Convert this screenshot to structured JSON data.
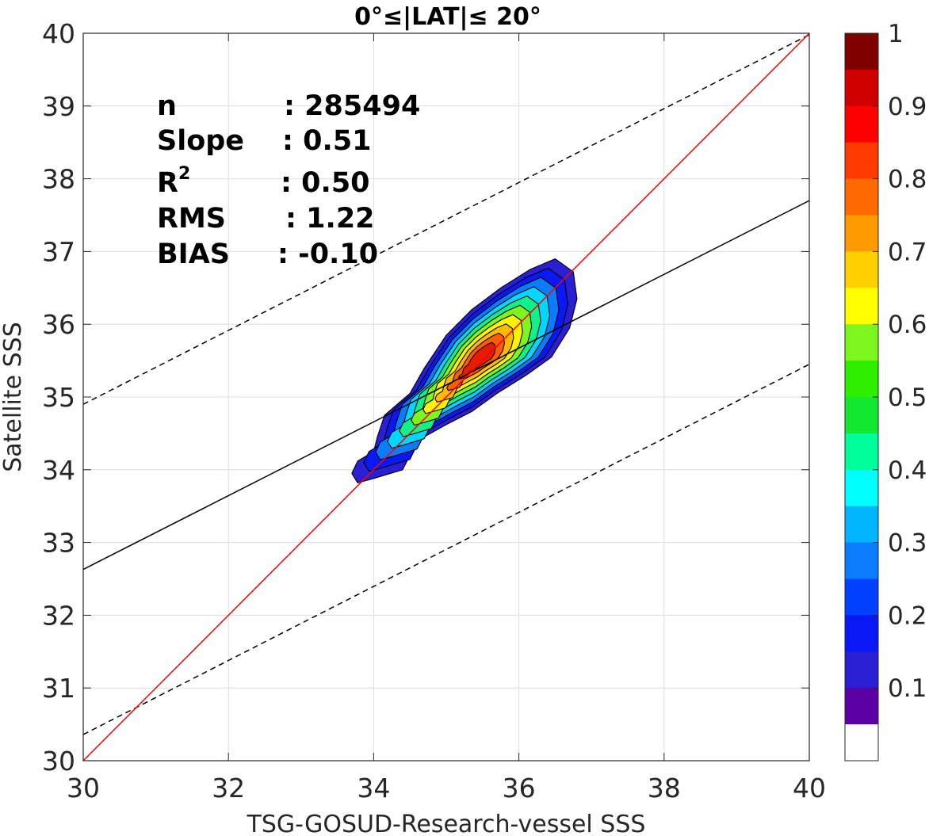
{
  "chart_data": {
    "type": "contour",
    "title": "0°≤|LAT|≤ 20°",
    "xlabel": "TSG-GOSUD-Research-vessel SSS",
    "ylabel": "Satellite SSS",
    "xlim": [
      30,
      40
    ],
    "ylim": [
      30,
      40
    ],
    "xticks": [
      "30",
      "32",
      "34",
      "36",
      "38",
      "40"
    ],
    "yticks": [
      "30",
      "31",
      "32",
      "33",
      "34",
      "35",
      "36",
      "37",
      "38",
      "39",
      "40"
    ],
    "grid": true,
    "stats": {
      "n_label": "n",
      "n_value": ": 285494",
      "slope_label": "Slope",
      "slope_value": ": 0.51",
      "r2_label": "R",
      "r2_sup": "2",
      "r2_value": ": 0.50",
      "rms_label": "RMS",
      "rms_value": ": 1.22",
      "bias_label": "BIAS",
      "bias_value": ": -0.10"
    },
    "lines": {
      "one_to_one": {
        "color": "#ff0000",
        "x": [
          30,
          40
        ],
        "y": [
          30,
          40
        ]
      },
      "regression": {
        "color": "#000000",
        "style": "solid",
        "x": [
          30,
          40
        ],
        "y": [
          32.63,
          37.7
        ]
      },
      "upper_bound": {
        "color": "#000000",
        "style": "dashed",
        "x": [
          30,
          40
        ],
        "y": [
          34.9,
          39.98
        ]
      },
      "lower_bound": {
        "color": "#000000",
        "style": "dashed",
        "x": [
          30,
          40
        ],
        "y": [
          30.36,
          35.45
        ]
      }
    },
    "density_peak": {
      "x": 35.2,
      "y": 35.3
    },
    "density_secondary_peak": {
      "x": 35.6,
      "y": 35.65
    },
    "contour_levels": [
      0.05,
      0.1,
      0.2,
      0.3,
      0.4,
      0.5,
      0.6,
      0.7,
      0.8,
      0.9
    ],
    "contour_colors": [
      "#2a1fd2",
      "#0a18f4",
      "#0a7cff",
      "#00d6ff",
      "#12f08a",
      "#7ff520",
      "#fff300",
      "#ffbb00",
      "#ff5d00",
      "#e61c00"
    ],
    "colorbar": {
      "min": 0,
      "max": 1,
      "tick_labels": [
        "0.1",
        "0.2",
        "0.3",
        "0.4",
        "0.5",
        "0.6",
        "0.7",
        "0.8",
        "0.9",
        "1"
      ],
      "tick_values": [
        0.1,
        0.2,
        0.3,
        0.4,
        0.5,
        0.6,
        0.7,
        0.8,
        0.9,
        1.0
      ],
      "colors": [
        "#ffffff",
        "#5a00a6",
        "#2a1fd2",
        "#0a18f4",
        "#0040ff",
        "#0a7cff",
        "#00b4ff",
        "#00ffff",
        "#00ff9a",
        "#12e830",
        "#2df000",
        "#7ff520",
        "#ffff00",
        "#ffd000",
        "#ff9a00",
        "#ff6a00",
        "#ff3a00",
        "#ff0000",
        "#d00000",
        "#800000"
      ]
    }
  }
}
